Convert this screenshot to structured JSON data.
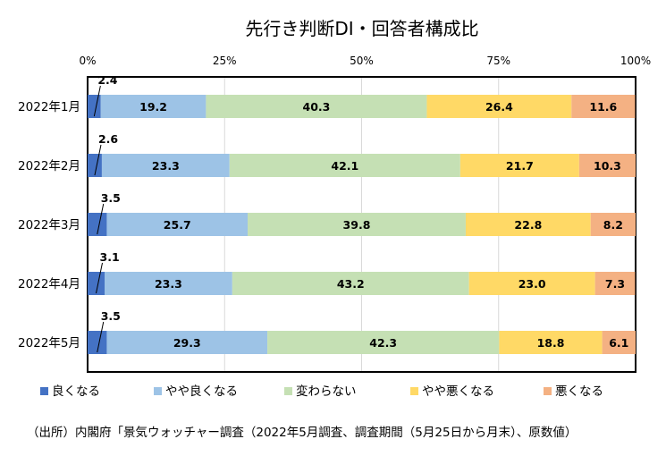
{
  "chart_data": {
    "type": "bar",
    "orientation": "horizontal",
    "stacked": true,
    "percent": true,
    "title": "先行き判断DI・回答者構成比",
    "categories": [
      "2022年1月",
      "2022年2月",
      "2022年3月",
      "2022年4月",
      "2022年5月"
    ],
    "series": [
      {
        "name": "良くなる",
        "color": "#4472C4",
        "values": [
          2.4,
          2.6,
          3.5,
          3.1,
          3.5
        ]
      },
      {
        "name": "やや良くなる",
        "color": "#9DC3E6",
        "values": [
          19.2,
          23.3,
          25.7,
          23.3,
          29.3
        ]
      },
      {
        "name": "変わらない",
        "color": "#C5E0B4",
        "values": [
          40.3,
          42.1,
          39.8,
          43.2,
          42.3
        ]
      },
      {
        "name": "やや悪くなる",
        "color": "#FFD966",
        "values": [
          26.4,
          21.7,
          22.8,
          23.0,
          18.8
        ]
      },
      {
        "name": "悪くなる",
        "color": "#F4B183",
        "values": [
          11.6,
          10.3,
          8.2,
          7.3,
          6.1
        ]
      }
    ],
    "value_labels": [
      [
        "2.4",
        "19.2",
        "40.3",
        "26.4",
        "11.6"
      ],
      [
        "2.6",
        "23.3",
        "42.1",
        "21.7",
        "10.3"
      ],
      [
        "3.5",
        "25.7",
        "39.8",
        "22.8",
        "8.2"
      ],
      [
        "3.1",
        "23.3",
        "43.2",
        "23.0",
        "7.3"
      ],
      [
        "3.5",
        "29.3",
        "42.3",
        "18.8",
        "6.1"
      ]
    ],
    "xlim": [
      0,
      100
    ],
    "x_ticks": [
      "0%",
      "25%",
      "50%",
      "75%",
      "100%"
    ],
    "x_tick_values": [
      0,
      25,
      50,
      75,
      100
    ],
    "xaxis_position": "top",
    "grid": true,
    "legend_position": "bottom",
    "source": "（出所）内閣府「景気ウォッチャー調査（2022年5月調査、調査期間（5月25日から月末）、原数値）"
  }
}
